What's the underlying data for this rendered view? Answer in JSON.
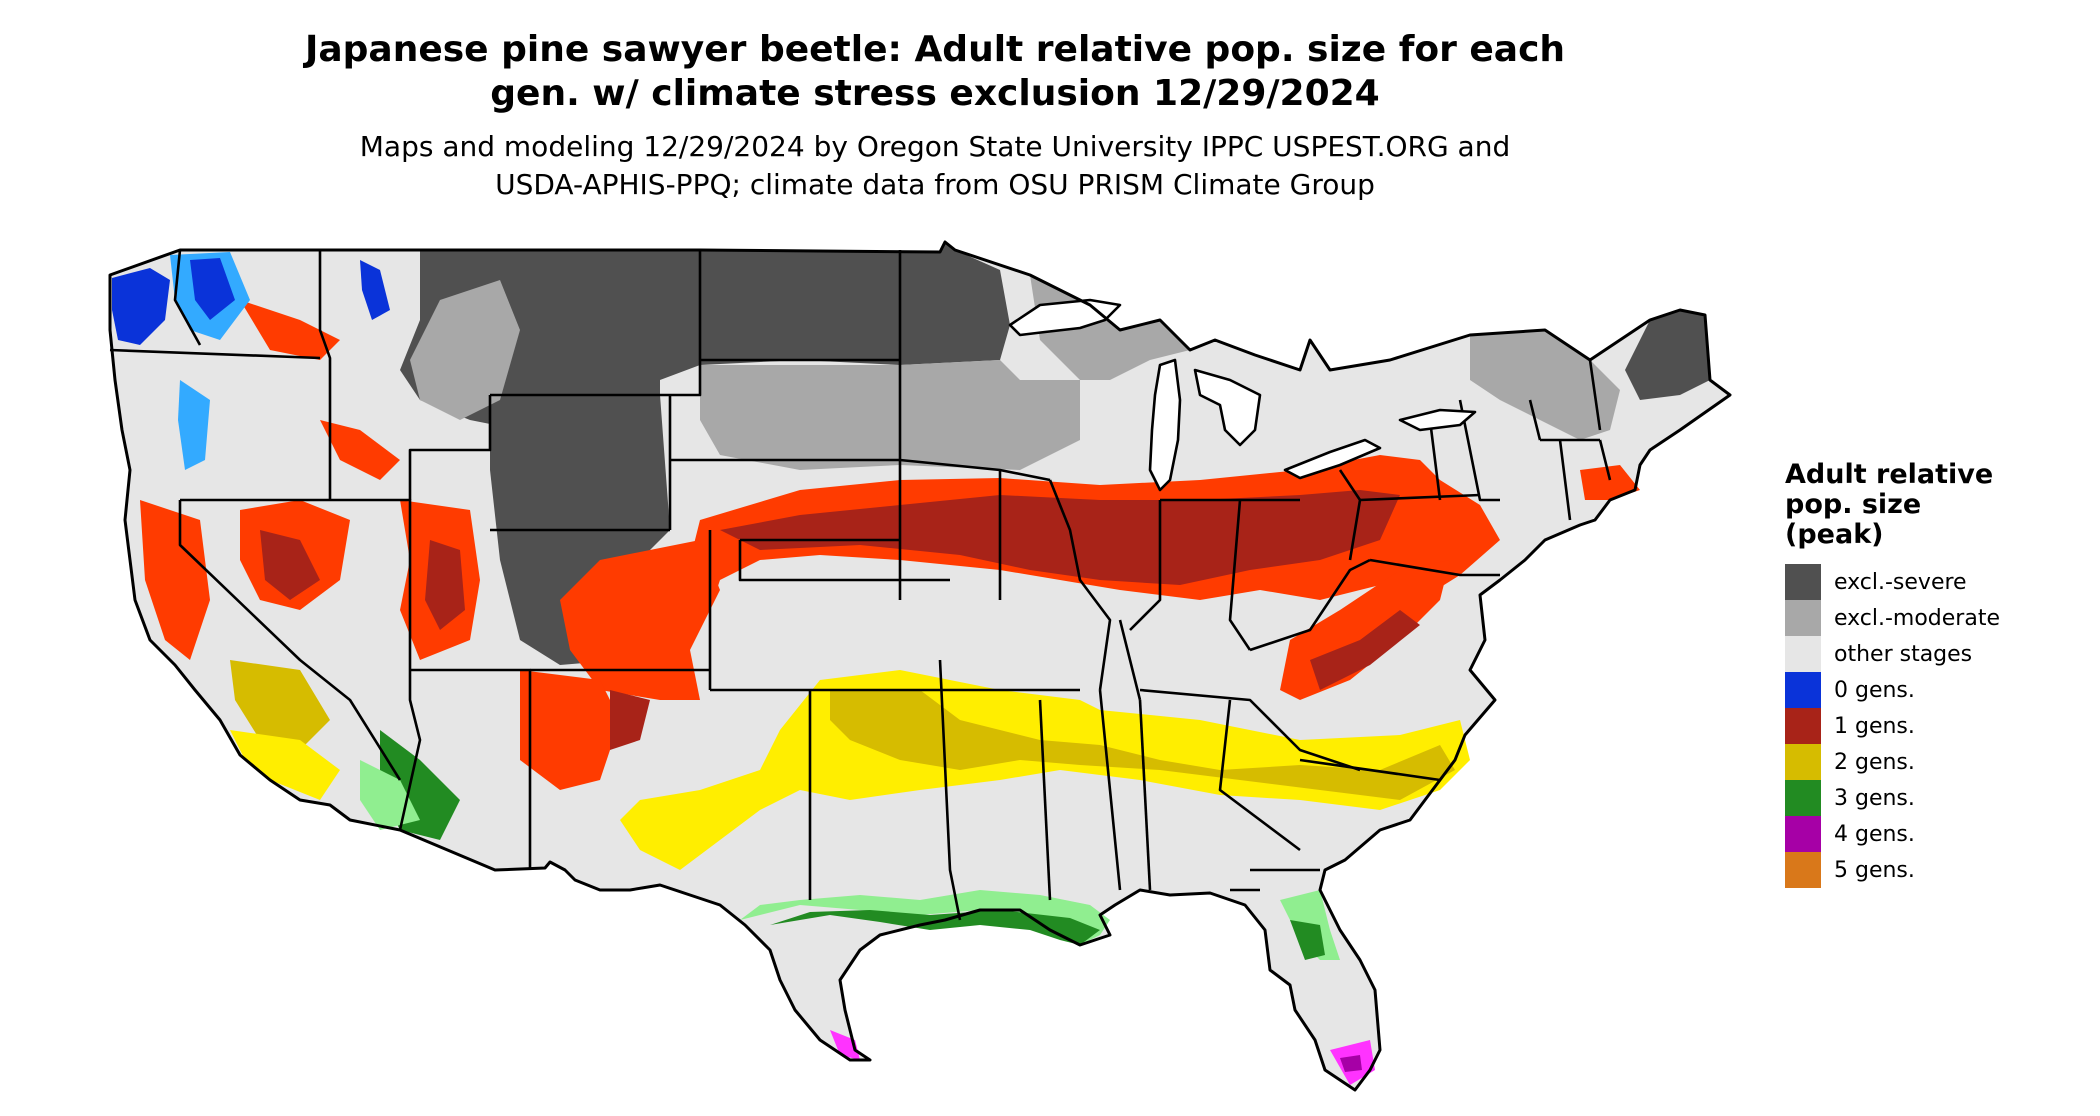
{
  "title": {
    "line1": "Japanese pine sawyer beetle: Adult relative pop. size for each",
    "line2": "gen. w/ climate stress exclusion 12/29/2024"
  },
  "subtitle": {
    "line1": "Maps and modeling 12/29/2024 by Oregon State University IPPC USPEST.ORG and",
    "line2": "USDA-APHIS-PPQ; climate data from OSU PRISM Climate Group"
  },
  "legend": {
    "title_lines": [
      "Adult relative",
      "pop. size",
      "(peak)"
    ],
    "items": [
      {
        "label": "excl.-severe",
        "color": "#505050"
      },
      {
        "label": "excl.-moderate",
        "color": "#a8a8a8"
      },
      {
        "label": "other stages",
        "color": "#e6e6e6"
      },
      {
        "label": "0 gens.",
        "color": "#0a33d9"
      },
      {
        "label": "1 gens.",
        "color": "#a82318"
      },
      {
        "label": "2 gens.",
        "color": "#d6bc00"
      },
      {
        "label": "3 gens.",
        "color": "#228b22"
      },
      {
        "label": "4 gens.",
        "color": "#a600a6"
      },
      {
        "label": "5 gens.",
        "color": "#d9781a"
      }
    ]
  },
  "map_colors": {
    "land": "#e6e6e6",
    "state_border": "#000000",
    "water": "#ffffff",
    "bright_red": "#ff3b00",
    "bright_yellow": "#ffee00",
    "light_green": "#90ee90",
    "bright_magenta": "#ff33ff",
    "light_blue": "#33aaff"
  }
}
